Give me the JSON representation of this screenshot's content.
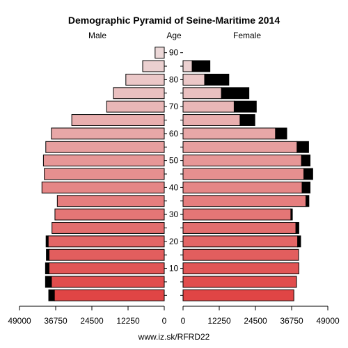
{
  "chart_data": {
    "type": "bar",
    "title": "Demographic Pyramid of Seine-Maritime 2014",
    "left_label": "Male",
    "center_label": "Age",
    "right_label": "Female",
    "footer": "www.iz.sk/RFRD22",
    "x_max": 49000,
    "x_ticks": [
      {
        "value": 49000,
        "label": "49000"
      },
      {
        "value": 36750,
        "label": "36750"
      },
      {
        "value": 24500,
        "label": "24500"
      },
      {
        "value": 12250,
        "label": "12250"
      },
      {
        "value": 0,
        "label": "0"
      }
    ],
    "age_ticks": [
      "10",
      "20",
      "30",
      "40",
      "50",
      "60",
      "70",
      "80",
      "90"
    ],
    "age_groups": [
      "0-4",
      "5-9",
      "10-14",
      "15-19",
      "20-24",
      "25-29",
      "30-34",
      "35-39",
      "40-44",
      "45-49",
      "50-54",
      "55-59",
      "60-64",
      "65-69",
      "70-74",
      "75-79",
      "80-84",
      "85-89",
      "90+"
    ],
    "male": [
      {
        "base": 37200,
        "excess": 1900
      },
      {
        "base": 38200,
        "excess": 2000
      },
      {
        "base": 39000,
        "excess": 1200
      },
      {
        "base": 39000,
        "excess": 900
      },
      {
        "base": 39300,
        "excess": 700
      },
      {
        "base": 38000,
        "excess": 0
      },
      {
        "base": 37000,
        "excess": 0
      },
      {
        "base": 36200,
        "excess": 0
      },
      {
        "base": 41400,
        "excess": 0
      },
      {
        "base": 40600,
        "excess": 0
      },
      {
        "base": 40900,
        "excess": 0
      },
      {
        "base": 40100,
        "excess": 0
      },
      {
        "base": 38200,
        "excess": 0
      },
      {
        "base": 31300,
        "excess": 0
      },
      {
        "base": 19500,
        "excess": 0
      },
      {
        "base": 17200,
        "excess": 0
      },
      {
        "base": 13000,
        "excess": 0
      },
      {
        "base": 7300,
        "excess": 0
      },
      {
        "base": 3100,
        "excess": 0
      }
    ],
    "female": [
      {
        "base": 37500,
        "excess": 0
      },
      {
        "base": 38400,
        "excess": 0
      },
      {
        "base": 39200,
        "excess": 0
      },
      {
        "base": 39100,
        "excess": 0
      },
      {
        "base": 38800,
        "excess": 1000
      },
      {
        "base": 38200,
        "excess": 1000
      },
      {
        "base": 36500,
        "excess": 500
      },
      {
        "base": 41600,
        "excess": 1000
      },
      {
        "base": 40300,
        "excess": 2700
      },
      {
        "base": 40900,
        "excess": 3000
      },
      {
        "base": 40100,
        "excess": 2900
      },
      {
        "base": 38600,
        "excess": 3900
      },
      {
        "base": 31300,
        "excess": 3800
      },
      {
        "base": 19300,
        "excess": 5000
      },
      {
        "base": 17300,
        "excess": 7500
      },
      {
        "base": 13000,
        "excess": 9300
      },
      {
        "base": 7300,
        "excess": 8200
      },
      {
        "base": 3100,
        "excess": 6000
      },
      {
        "base": 0,
        "excess": 0
      }
    ],
    "colors": {
      "young": "#e04545",
      "old": "#ecd8d8",
      "excess": "#000000",
      "stroke": "#000000"
    }
  }
}
